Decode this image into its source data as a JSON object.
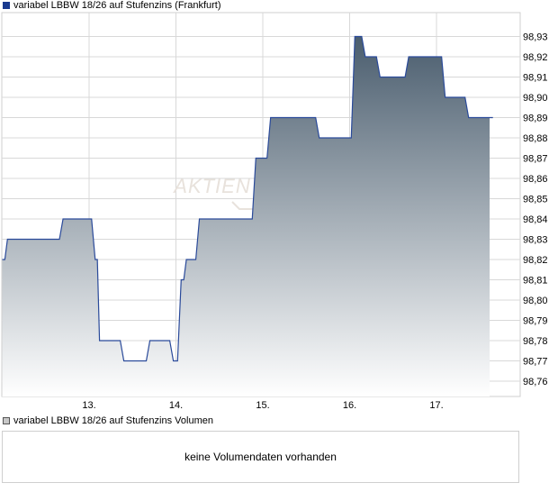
{
  "legends": {
    "price_series": "variabel LBBW 18/26 auf Stufenzins (Frankfurt)",
    "volume_series": "variabel LBBW 18/26 auf Stufenzins Volumen"
  },
  "watermark": "AKTIEN",
  "volume_panel": {
    "message": "keine Volumendaten vorhanden"
  },
  "colors": {
    "line": "#2a4a9a",
    "area_top": "#4a5d6e",
    "area_bottom": "#ffffff",
    "grid": "#d8d8d8"
  },
  "chart_data": {
    "type": "area",
    "title": "",
    "xlabel": "",
    "ylabel": "",
    "ylim": [
      98.75,
      98.94
    ],
    "xlim": [
      12.0,
      18.0
    ],
    "x_ticks": [
      13,
      14,
      15,
      16,
      17
    ],
    "x_tick_labels": [
      "13.",
      "14.",
      "15.",
      "16.",
      "17."
    ],
    "y_ticks": [
      98.76,
      98.77,
      98.78,
      98.79,
      98.8,
      98.81,
      98.82,
      98.83,
      98.84,
      98.85,
      98.86,
      98.87,
      98.88,
      98.89,
      98.9,
      98.91,
      98.92,
      98.93
    ],
    "y_tick_labels": [
      "98,76",
      "98,77",
      "98,78",
      "98,79",
      "98,80",
      "98,81",
      "98,82",
      "98,83",
      "98,84",
      "98,85",
      "98,86",
      "98,87",
      "98,88",
      "98,89",
      "98,90",
      "98,91",
      "98,92",
      "98,93"
    ],
    "grid": true,
    "series": [
      {
        "step": true,
        "x": [
          12.0,
          12.06,
          12.7,
          13.07,
          13.12,
          13.4,
          13.7,
          13.97,
          14.06,
          14.12,
          14.27,
          14.37,
          14.92,
          15.09,
          15.65,
          16.06,
          16.18,
          16.35,
          16.68,
          17.1,
          17.37,
          17.65
        ],
        "y": [
          98.82,
          98.83,
          98.84,
          98.82,
          98.78,
          98.77,
          98.78,
          98.77,
          98.81,
          98.82,
          98.84,
          98.84,
          98.87,
          98.89,
          98.88,
          98.93,
          98.92,
          98.91,
          98.92,
          98.9,
          98.89,
          98.89
        ]
      }
    ]
  }
}
